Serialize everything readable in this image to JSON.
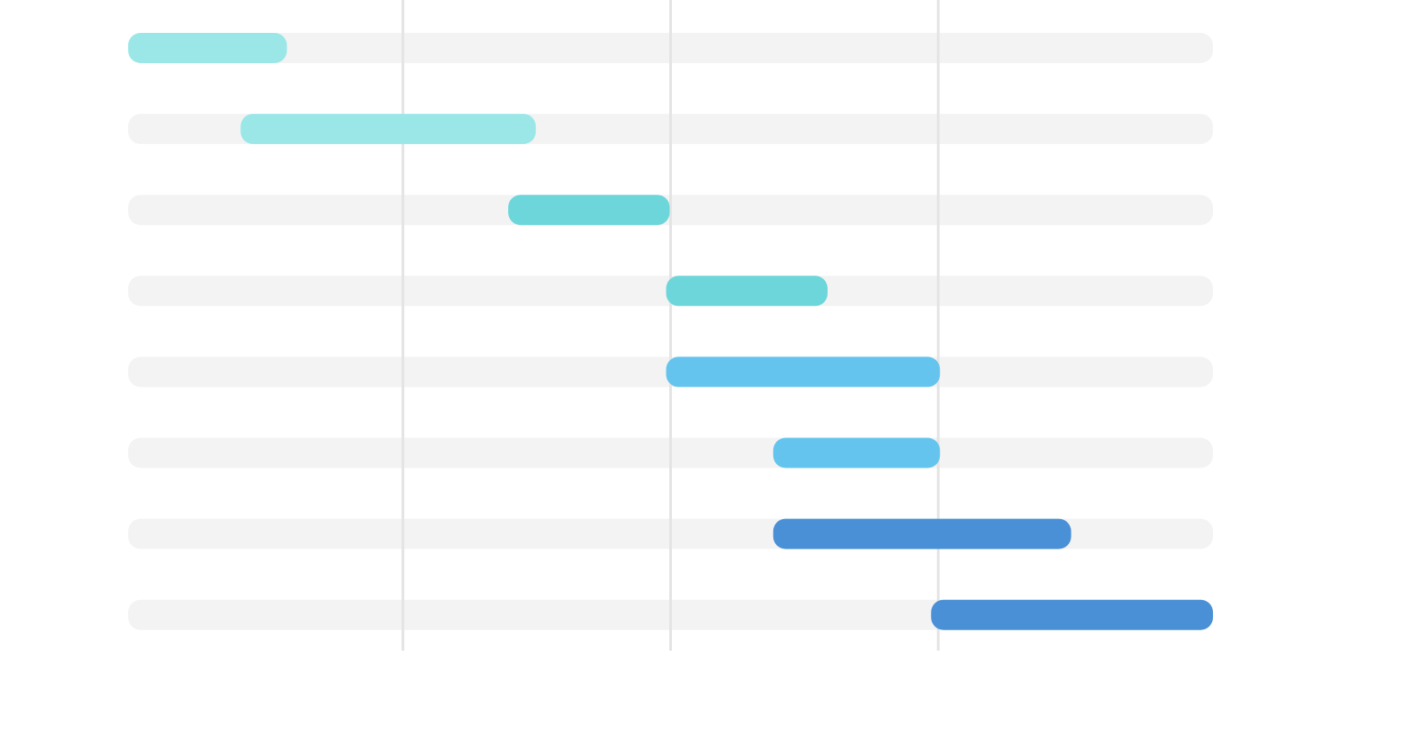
{
  "chart_data": {
    "type": "bar",
    "subtype": "gantt-timeline",
    "title": "",
    "xlabel": "",
    "ylabel": "",
    "x_range": [
      0,
      4
    ],
    "gridlines_at": [
      1,
      2,
      3
    ],
    "grid": true,
    "legend": "none",
    "tasks": [
      {
        "start": 0.0,
        "end": 0.54,
        "color": "#9be7e8"
      },
      {
        "start": 0.42,
        "end": 1.47,
        "color": "#9be7e8"
      },
      {
        "start": 1.42,
        "end": 1.97,
        "color": "#6cd6da"
      },
      {
        "start": 2.01,
        "end": 2.56,
        "color": "#6cd6da"
      },
      {
        "start": 2.01,
        "end": 2.98,
        "color": "#64c4ee"
      },
      {
        "start": 2.41,
        "end": 2.98,
        "color": "#64c4ee"
      },
      {
        "start": 2.41,
        "end": 3.47,
        "color": "#4a90d6"
      },
      {
        "start": 3.0,
        "end": 4.0,
        "color": "#4a90d6"
      }
    ]
  },
  "colors": {
    "track": "#f3f3f3",
    "gridline": "#e4e4e4",
    "background": "#ffffff"
  }
}
